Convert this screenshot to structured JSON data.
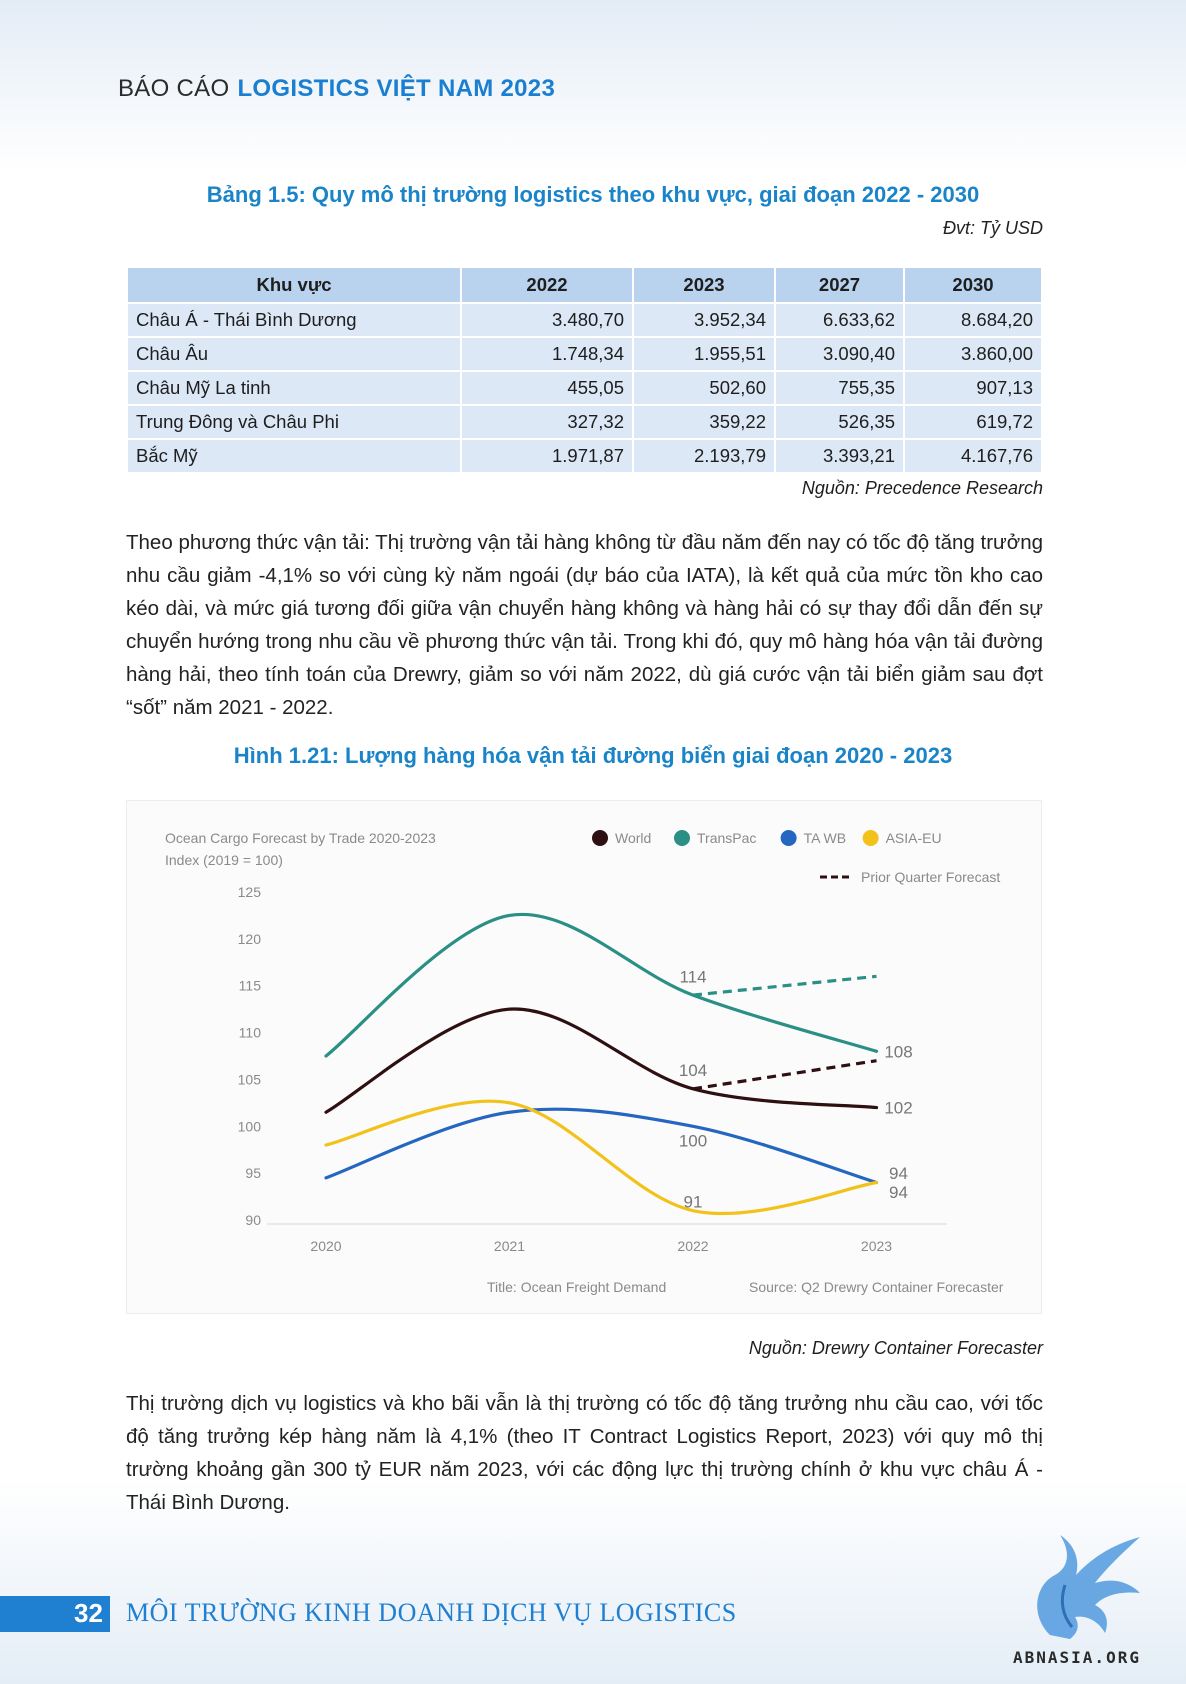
{
  "header": {
    "prefix": "BÁO CÁO",
    "title": "LOGISTICS VIỆT NAM 2023"
  },
  "table": {
    "title": "Bảng 1.5: Quy mô thị trường logistics theo khu vực, giai đoạn 2022 - 2030",
    "unit": "Đvt: Tỷ USD",
    "columns": [
      "Khu vực",
      "2022",
      "2023",
      "2027",
      "2030"
    ],
    "rows": [
      [
        "Châu Á - Thái Bình Dương",
        "3.480,70",
        "3.952,34",
        "6.633,62",
        "8.684,20"
      ],
      [
        "Châu Âu",
        "1.748,34",
        "1.955,51",
        "3.090,40",
        "3.860,00"
      ],
      [
        "Châu Mỹ La tinh",
        "455,05",
        "502,60",
        "755,35",
        "907,13"
      ],
      [
        "Trung Đông và Châu Phi",
        "327,32",
        "359,22",
        "526,35",
        "619,72"
      ],
      [
        "Bắc Mỹ",
        "1.971,87",
        "2.193,79",
        "3.393,21",
        "4.167,76"
      ]
    ],
    "source": "Nguồn: Precedence Research"
  },
  "paragraph1": "Theo phương thức vận tải: Thị trường vận tải hàng không từ đầu năm đến nay có tốc độ tăng trưởng nhu cầu giảm -4,1% so với cùng kỳ năm ngoái (dự báo của IATA), là kết quả của mức tồn kho cao kéo dài, và mức giá tương đối giữa vận chuyển hàng không và hàng hải có sự thay đổi dẫn đến sự chuyển hướng trong nhu cầu về phương thức vận tải. Trong khi đó, quy mô hàng hóa vận tải đường hàng hải, theo tính toán của Drewry, giảm so với năm 2022, dù giá cước vận tải biển giảm sau đợt “sốt” năm 2021 - 2022.",
  "figure": {
    "title": "Hình 1.21: Lượng hàng hóa vận tải đường biển giai đoạn 2020 - 2023",
    "source": "Nguồn: Drewry Container Forecaster"
  },
  "chart_data": {
    "type": "line",
    "title": "Ocean Cargo Forecast by Trade 2020-2023",
    "subtitle": "Index (2019 = 100)",
    "x": [
      "2020",
      "2021",
      "2022",
      "2023"
    ],
    "ylim": [
      90,
      125
    ],
    "yticks": [
      125,
      120,
      115,
      110,
      105,
      100,
      95,
      90
    ],
    "series": [
      {
        "name": "World",
        "color": "#2e0f12",
        "values": [
          101.5,
          112.5,
          104,
          102
        ]
      },
      {
        "name": "TransPac",
        "color": "#2a8f84",
        "values": [
          107.5,
          122.5,
          114,
          108
        ]
      },
      {
        "name": "TA WB",
        "color": "#2466c0",
        "values": [
          94.5,
          101.5,
          100,
          94
        ]
      },
      {
        "name": "ASIA-EU",
        "color": "#f2c21b",
        "values": [
          98,
          102.5,
          91,
          94
        ]
      }
    ],
    "forecast": {
      "name": "Prior Quarter Forecast",
      "lines": [
        {
          "color": "#2a8f84",
          "x": [
            "2022",
            "2023"
          ],
          "values": [
            114,
            116
          ]
        },
        {
          "color": "#2e0f12",
          "x": [
            "2022",
            "2023"
          ],
          "values": [
            104,
            107
          ]
        }
      ]
    },
    "data_labels": [
      {
        "text": "114",
        "x": "2022",
        "y": 116
      },
      {
        "text": "104",
        "x": "2022",
        "y": 106
      },
      {
        "text": "100",
        "x": "2022",
        "y": 98.5
      },
      {
        "text": "91",
        "x": "2022",
        "y": 92
      },
      {
        "text": "108",
        "x": "2023",
        "y": 108
      },
      {
        "text": "102",
        "x": "2023",
        "y": 102
      },
      {
        "text": "94",
        "x": "2023",
        "y": 95
      },
      {
        "text": "94",
        "x": "2023",
        "y": 93
      }
    ],
    "footer_title": "Title: Ocean Freight Demand",
    "footer_source": "Source: Q2 Drewry Container Forecaster",
    "grid": false,
    "legend_position": "top-right"
  },
  "paragraph2": "Thị trường dịch vụ logistics và kho bãi vẫn là thị trường có tốc độ tăng trưởng nhu cầu cao, với tốc độ tăng trưởng kép hàng năm là 4,1% (theo IT Contract Logistics Report, 2023) với quy mô thị trường khoảng gần 300 tỷ EUR năm 2023, với các động lực thị trường chính ở khu vực châu Á - Thái Bình Dương.",
  "footer": {
    "page": "32",
    "title": "MÔI TRƯỜNG KINH DOANH DỊCH VỤ LOGISTICS",
    "logo_text": "ABNASIA.ORG"
  }
}
